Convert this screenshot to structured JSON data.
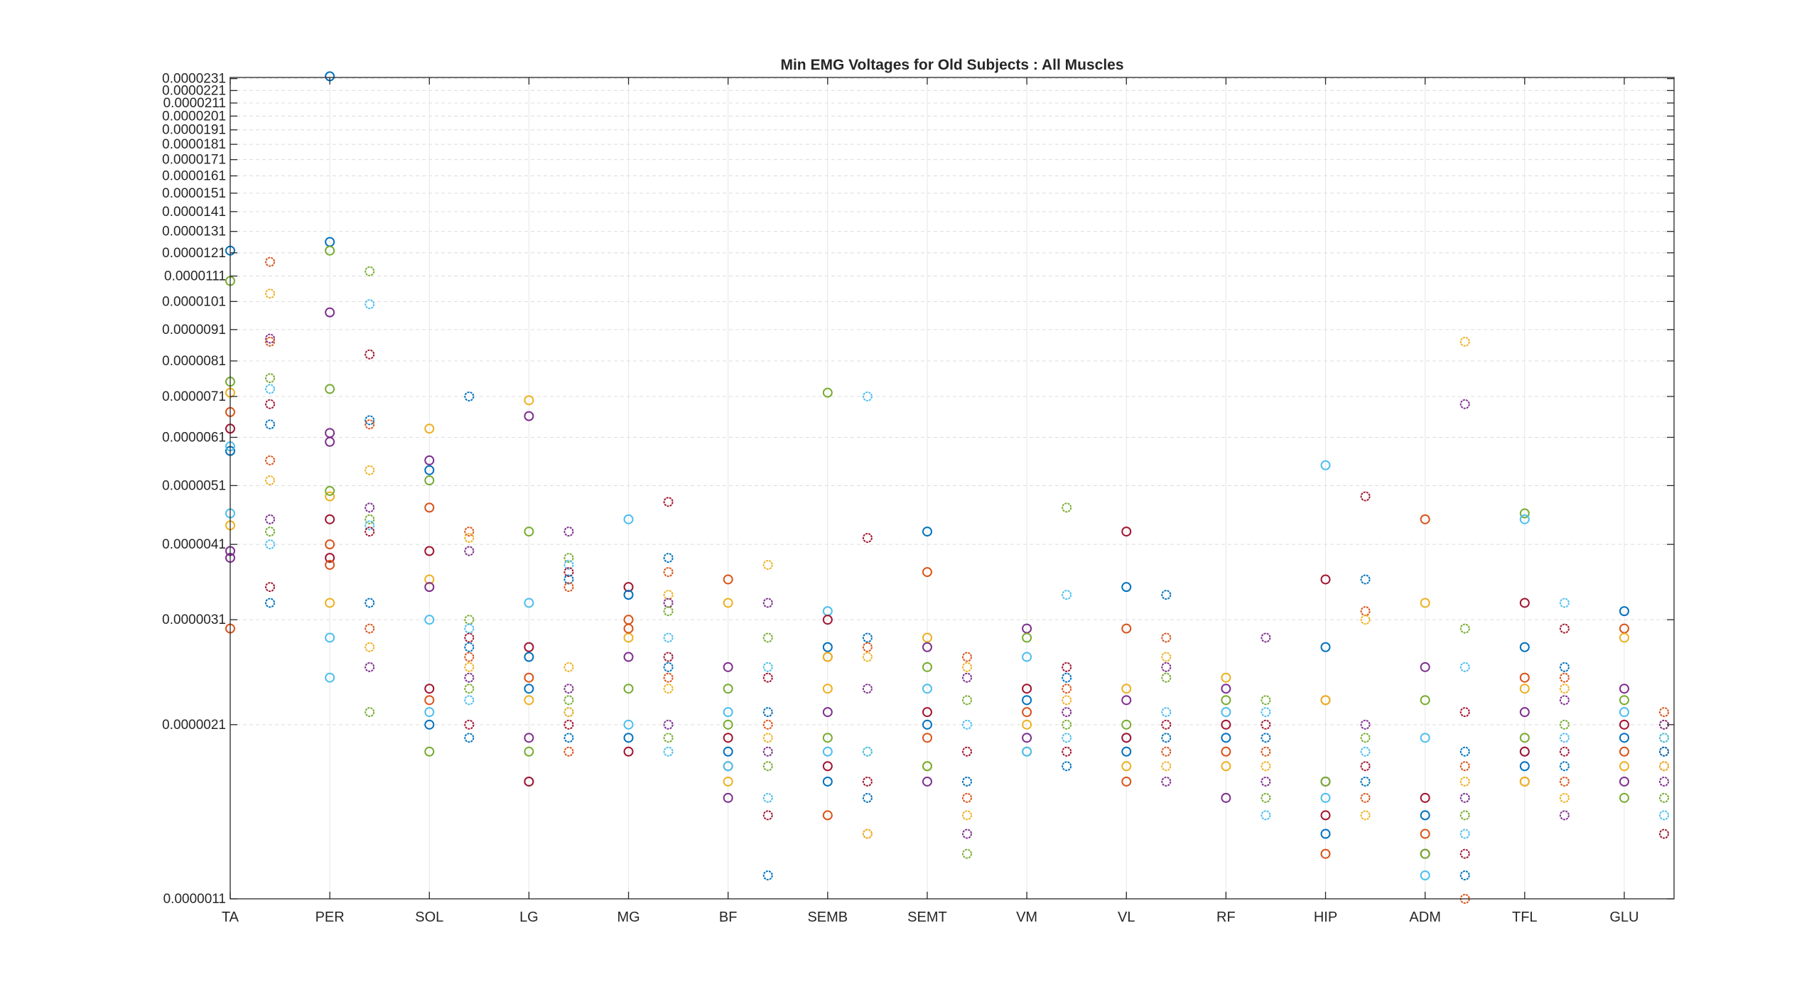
{
  "chart_data": {
    "type": "scatter",
    "title": "Min EMG Voltages for Old Subjects : All Muscles",
    "xlabel": "",
    "ylabel": "",
    "y_scale": "log",
    "ylim": [
      1.1e-06,
      2.32e-05
    ],
    "y_ticks": [
      1.1e-06,
      2.1e-06,
      3.1e-06,
      4.1e-06,
      5.1e-06,
      6.1e-06,
      7.1e-06,
      8.1e-06,
      9.1e-06,
      1.01e-05,
      1.11e-05,
      1.21e-05,
      1.31e-05,
      1.41e-05,
      1.51e-05,
      1.61e-05,
      1.71e-05,
      1.81e-05,
      1.91e-05,
      2.01e-05,
      2.11e-05,
      2.21e-05,
      2.31e-05
    ],
    "y_tick_labels": [
      "0.0000011",
      "0.0000021",
      "0.0000031",
      "0.0000041",
      "0.0000051",
      "0.0000061",
      "0.0000071",
      "0.0000081",
      "0.0000091",
      "0.0000101",
      "0.0000111",
      "0.0000121",
      "0.0000131",
      "0.0000141",
      "0.0000151",
      "0.0000161",
      "0.0000171",
      "0.0000181",
      "0.0000191",
      "0.0000201",
      "0.0000211",
      "0.0000221",
      "0.0000231"
    ],
    "xlim": [
      0,
      14.5
    ],
    "categories": [
      "TA",
      "PER",
      "SOL",
      "LG",
      "MG",
      "BF",
      "SEMB",
      "SEMT",
      "VM",
      "VL",
      "RF",
      "HIP",
      "ADM",
      "TFL",
      "GLU"
    ],
    "grid": true,
    "colors": [
      "#0072BD",
      "#D95319",
      "#EDB120",
      "#7E2F8E",
      "#77AC30",
      "#4DBEEE",
      "#A2142F"
    ],
    "series": [
      {
        "marker": "circle",
        "values": [
          [
            5.8e-06,
            6.7e-06,
            4.4e-06,
            4e-06,
            1.09e-05,
            4.6e-06,
            6.3e-06,
            1.22e-05,
            3e-06,
            7.2e-06,
            3.9e-06,
            7.5e-06,
            5.9e-06
          ],
          [
            6.2e-06,
            7.3e-06,
            2.9e-06,
            4.5e-06,
            1.26e-05,
            4.1e-06,
            4.9e-06,
            9.7e-06,
            1.22e-05,
            2.5e-06,
            3.9e-06,
            2.33e-05,
            3.8e-06,
            3.3e-06,
            6e-06,
            5e-06
          ],
          [
            4e-06,
            5.4e-06,
            4.7e-06,
            6.3e-06,
            5.6e-06,
            5.2e-06,
            3.1e-06,
            2.4e-06,
            2.1e-06,
            2.3e-06,
            3.6e-06,
            3.5e-06,
            1.9e-06,
            2.2e-06
          ],
          [
            7e-06,
            6.6e-06,
            4.3e-06,
            3.3e-06,
            2.8e-06,
            2.4e-06,
            2.5e-06,
            2.3e-06,
            2e-06,
            1.9e-06,
            1.7e-06,
            1.7e-06,
            2.7e-06
          ],
          [
            4.5e-06,
            3.5e-06,
            3.4e-06,
            3.1e-06,
            2.9e-06,
            2.7e-06,
            2.4e-06,
            2.1e-06,
            1.9e-06,
            2e-06,
            3e-06
          ],
          [
            3.6e-06,
            3.3e-06,
            2.6e-06,
            2.4e-06,
            2.2e-06,
            2e-06,
            1.9e-06,
            1.8e-06,
            1.7e-06,
            1.6e-06,
            2.1e-06,
            1.8e-06
          ],
          [
            7.2e-06,
            3.2e-06,
            3.1e-06,
            2.8e-06,
            2.7e-06,
            2.4e-06,
            2.2e-06,
            2e-06,
            1.9e-06,
            1.8e-06,
            1.7e-06,
            1.5e-06,
            2.7e-06
          ],
          [
            4.3e-06,
            3.7e-06,
            2.9e-06,
            2.8e-06,
            2.6e-06,
            2.4e-06,
            2.2e-06,
            2.1e-06,
            2e-06,
            1.8e-06,
            1.7e-06,
            1.8e-06
          ],
          [
            3e-06,
            2.9e-06,
            2.7e-06,
            2.4e-06,
            2.3e-06,
            2.2e-06,
            2.1e-06,
            2e-06,
            1.9e-06,
            1.9e-06
          ],
          [
            4.3e-06,
            3.5e-06,
            3e-06,
            2.4e-06,
            2.3e-06,
            2.1e-06,
            2e-06,
            2e-06,
            1.9e-06,
            1.7e-06,
            1.8e-06
          ],
          [
            2.5e-06,
            2.4e-06,
            2.3e-06,
            2.2e-06,
            2.1e-06,
            2e-06,
            1.9e-06,
            1.8e-06,
            1.6e-06
          ],
          [
            5.5e-06,
            3.6e-06,
            2.8e-06,
            2.3e-06,
            2.3e-06,
            1.7e-06,
            1.7e-06,
            1.6e-06,
            1.5e-06,
            1.4e-06,
            1.3e-06
          ],
          [
            4.5e-06,
            3.3e-06,
            2.6e-06,
            2.3e-06,
            2e-06,
            1.6e-06,
            1.5e-06,
            1.4e-06,
            1.3e-06,
            1.3e-06,
            1.3e-06,
            1.2e-06
          ],
          [
            4.6e-06,
            4.5e-06,
            3.3e-06,
            2.8e-06,
            2.5e-06,
            2.4e-06,
            2.2e-06,
            2e-06,
            1.9e-06,
            1.9e-06,
            1.8e-06,
            1.7e-06,
            1.7e-06
          ],
          [
            3.2e-06,
            3e-06,
            2.9e-06,
            2.4e-06,
            2.3e-06,
            2.2e-06,
            2.1e-06,
            2e-06,
            1.9e-06,
            1.8e-06,
            1.7e-06,
            1.6e-06
          ]
        ]
      },
      {
        "marker": "circle-bold",
        "values": [
          [
            1.17e-05,
            1.04e-05,
            8.8e-06,
            7.6e-06,
            7.3e-06,
            6.9e-06,
            6.4e-06,
            5.6e-06,
            5.2e-06,
            4.5e-06,
            4.3e-06,
            4.1e-06,
            3.5e-06,
            3.3e-06,
            8.7e-06
          ],
          [
            1.13e-05,
            1e-05,
            8.3e-06,
            6.5e-06,
            6.4e-06,
            5.4e-06,
            4.7e-06,
            4.5e-06,
            4.4e-06,
            4.3e-06,
            3.3e-06,
            3e-06,
            2.8e-06,
            2.6e-06,
            2.2e-06
          ],
          [
            7.1e-06,
            4.3e-06,
            4.2e-06,
            4e-06,
            3.1e-06,
            3e-06,
            2.9e-06,
            2.8e-06,
            2.7e-06,
            2.6e-06,
            2.5e-06,
            2.4e-06,
            2.3e-06,
            2.1e-06,
            2e-06
          ],
          [
            4.3e-06,
            3.9e-06,
            3.8e-06,
            3.7e-06,
            3.6e-06,
            3.5e-06,
            2.6e-06,
            2.4e-06,
            2.3e-06,
            2.2e-06,
            2.1e-06,
            2e-06,
            1.9e-06,
            2.2e-06
          ],
          [
            4.8e-06,
            3.9e-06,
            3.7e-06,
            3.4e-06,
            3.3e-06,
            3.2e-06,
            2.9e-06,
            2.7e-06,
            2.6e-06,
            2.5e-06,
            2.4e-06,
            2.1e-06,
            2e-06,
            1.9e-06
          ],
          [
            3.8e-06,
            3.3e-06,
            2.9e-06,
            2.6e-06,
            2.5e-06,
            2.2e-06,
            2.1e-06,
            2e-06,
            1.9e-06,
            1.8e-06,
            1.6e-06,
            1.5e-06,
            1.2e-06
          ],
          [
            7.1e-06,
            4.2e-06,
            2.9e-06,
            2.8e-06,
            2.7e-06,
            2.4e-06,
            1.9e-06,
            1.9e-06,
            1.7e-06,
            1.6e-06,
            1.4e-06,
            1.4e-06
          ],
          [
            2.7e-06,
            2.6e-06,
            2.5e-06,
            2.3e-06,
            2.1e-06,
            1.9e-06,
            1.7e-06,
            1.6e-06,
            1.5e-06,
            1.4e-06,
            1.3e-06
          ],
          [
            4.7e-06,
            3.4e-06,
            2.6e-06,
            2.5e-06,
            2.4e-06,
            2.3e-06,
            2.2e-06,
            2.1e-06,
            2e-06,
            1.9e-06,
            1.8e-06
          ],
          [
            3.4e-06,
            2.9e-06,
            2.7e-06,
            2.6e-06,
            2.5e-06,
            2.2e-06,
            2.1e-06,
            2e-06,
            1.9e-06,
            1.8e-06,
            1.7e-06
          ],
          [
            2.9e-06,
            2.3e-06,
            2.2e-06,
            2.1e-06,
            2e-06,
            1.9e-06,
            1.8e-06,
            1.7e-06,
            1.6e-06,
            1.5e-06
          ],
          [
            4.9e-06,
            3.6e-06,
            3.2e-06,
            3.1e-06,
            2.1e-06,
            2e-06,
            1.9e-06,
            1.8e-06,
            1.7e-06,
            1.6e-06,
            1.5e-06
          ],
          [
            8.7e-06,
            6.9e-06,
            3e-06,
            2.6e-06,
            2.2e-06,
            1.9e-06,
            1.8e-06,
            1.7e-06,
            1.6e-06,
            1.5e-06,
            1.4e-06,
            1.3e-06,
            1.2e-06,
            1.1e-06
          ],
          [
            3.3e-06,
            3e-06,
            2.6e-06,
            2.5e-06,
            2.4e-06,
            2.3e-06,
            2.1e-06,
            2e-06,
            1.9e-06,
            1.8e-06,
            1.7e-06,
            1.6e-06,
            1.5e-06
          ],
          [
            2.2e-06,
            2.1e-06,
            2.1e-06,
            2e-06,
            2e-06,
            1.9e-06,
            1.9e-06,
            1.8e-06,
            1.8e-06,
            1.7e-06,
            1.6e-06,
            1.5e-06,
            1.4e-06
          ]
        ]
      }
    ]
  }
}
